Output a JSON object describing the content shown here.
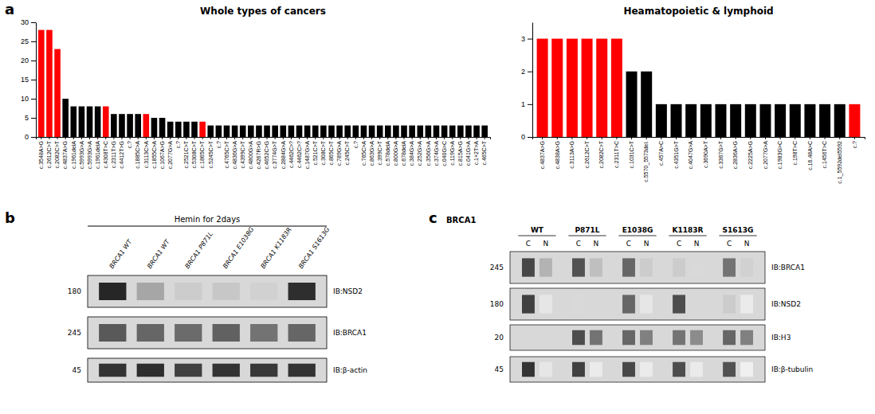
{
  "chart_data": [
    {
      "type": "bar",
      "panel_label": "a",
      "title": "Whole types of cancers",
      "categories": [
        "c.3548A>G",
        "c.2612C>T",
        "c.2082C>T",
        "c.4837A>G",
        "c.1961delA",
        "c.5993G>A",
        "c.5993G>A",
        "c.1961delA",
        "c.4308T>C",
        "c.2311T>G",
        "c.4412T>G",
        "c.?",
        "c.1885C>A",
        "c.3113C>A",
        "c.1855C>A",
        "c.1067A>G",
        "c.2077G>A",
        "c.?",
        "c.2521C>T",
        "c.5308C>T",
        "c.1865C>T",
        "c.5245C>T",
        "c.?",
        "c.4765C>T",
        "c.4836G>A",
        "c.4399C>T",
        "c.4800G>A",
        "c.4267R>G",
        "c.4652C>G",
        "c.3774G>T",
        "c.2884G>A",
        "c.4462C>?",
        "c.4462C>?",
        "c.1487G>A",
        "c.521C>T",
        "c.308C>T",
        "c.865C>T",
        "c.789G>A",
        "c.245C>T",
        "c.?",
        "c.765C>A",
        "c.863G>A",
        "c.399C>T",
        "c.578delA",
        "c.800G>A",
        "c.678delA",
        "c.384G>A",
        "c.252G>A",
        "c.356G>A",
        "c.374G>A",
        "c.040G>C",
        "c.119G>A",
        "c.815A>G",
        "c.041G>A",
        "c.1+2T>A",
        "c.465C>T"
      ],
      "values": [
        28,
        28,
        23,
        10,
        8,
        8,
        8,
        8,
        8,
        6,
        6,
        6,
        6,
        6,
        5,
        5,
        4,
        4,
        4,
        4,
        4,
        3,
        3,
        3,
        3,
        3,
        3,
        3,
        3,
        3,
        3,
        3,
        3,
        3,
        3,
        3,
        3,
        3,
        3,
        3,
        3,
        3,
        3,
        3,
        3,
        3,
        3,
        3,
        3,
        3,
        3,
        3,
        3,
        3,
        3,
        3
      ],
      "colors": [
        "red",
        "red",
        "red",
        "black",
        "black",
        "black",
        "black",
        "black",
        "red",
        "black",
        "black",
        "black",
        "black",
        "red",
        "black",
        "black",
        "black",
        "black",
        "black",
        "black",
        "red",
        "black",
        "black",
        "black",
        "black",
        "black",
        "black",
        "black",
        "black",
        "black",
        "black",
        "black",
        "black",
        "black",
        "black",
        "black",
        "black",
        "black",
        "black",
        "black",
        "black",
        "black",
        "black",
        "black",
        "black",
        "black",
        "black",
        "black",
        "black",
        "black",
        "black",
        "black",
        "black",
        "black",
        "black",
        "black"
      ],
      "ylim": [
        0,
        30
      ],
      "yticks": [
        0,
        5,
        10,
        15,
        20,
        25,
        30
      ]
    },
    {
      "type": "bar",
      "title": "Heamatopoietic & lymphoid",
      "categories": [
        "c.4837A>G",
        "c.4838A>G",
        "c.3113A>G",
        "c.2612C>T",
        "c.2082C>T",
        "c.2311T>C",
        "c.1031C>T",
        "c.5570_5573del.",
        "c.457A>C",
        "c.4351G>T",
        "c.4047G>A",
        "c.3690A>T",
        "c.3367G>T",
        "c.2836A>G",
        "c.2225A>G",
        "c.2077G>A",
        "c.1983G>C",
        "c.198T>C",
        "c.16.48A>C",
        "c.1456T>C",
        "c.1_5592del5592",
        "c.?"
      ],
      "values": [
        3,
        3,
        3,
        3,
        3,
        3,
        2,
        2,
        1,
        1,
        1,
        1,
        1,
        1,
        1,
        1,
        1,
        1,
        1,
        1,
        1,
        1
      ],
      "colors": [
        "red",
        "red",
        "red",
        "red",
        "red",
        "red",
        "black",
        "black",
        "black",
        "black",
        "black",
        "black",
        "black",
        "black",
        "black",
        "black",
        "black",
        "black",
        "black",
        "black",
        "black",
        "red"
      ],
      "ylim": [
        0,
        3.5
      ],
      "yticks": [
        0,
        1,
        2,
        3
      ]
    },
    {
      "type": "blot",
      "panel_label": "b",
      "annotations": [
        "Hemin for 2days"
      ],
      "color": "#d8d8d8",
      "categories": [
        "BRCA1 WT",
        "BRCA1 WT",
        "BRCA1 P871L",
        "BRCA1 E1038G",
        "BRCA1 K1183R",
        "BRCA1 S1613G"
      ],
      "series": [
        {
          "name": "IB:NSD2",
          "ladder_label": "180",
          "values": [
            0.85,
            0.35,
            0.2,
            0.22,
            0.18,
            0.82
          ]
        },
        {
          "name": "IB:BRCA1",
          "ladder_label": "245",
          "values": [
            0.65,
            0.6,
            0.58,
            0.62,
            0.55,
            0.6
          ]
        },
        {
          "name": "IB:β-actin",
          "ladder_label": "45",
          "values": [
            0.8,
            0.82,
            0.75,
            0.8,
            0.78,
            0.8
          ]
        }
      ]
    },
    {
      "type": "blot",
      "panel_label": "c",
      "title": "BRCA1",
      "color": "#d8d8d8",
      "categories": [
        "WT",
        "P871L",
        "E1038G",
        "K1183R",
        "S1613G"
      ],
      "fractions": [
        "C",
        "N"
      ],
      "series": [
        {
          "name": "IB:BRCA1",
          "ladder_label": "245",
          "values": [
            [
              0.72,
              0.3
            ],
            [
              0.68,
              0.25
            ],
            [
              0.6,
              0.2
            ],
            [
              0.2,
              0.15
            ],
            [
              0.55,
              0.18
            ]
          ]
        },
        {
          "name": "IB:NSD2",
          "ladder_label": "180",
          "values": [
            [
              0.75,
              0.1
            ],
            [
              0.15,
              null
            ],
            [
              0.6,
              0.1
            ],
            [
              0.7,
              null
            ],
            [
              0.2,
              0.08
            ]
          ]
        },
        {
          "name": "IB:H3",
          "ladder_label": "20",
          "values": [
            [
              null,
              null
            ],
            [
              0.7,
              0.55
            ],
            [
              0.6,
              0.5
            ],
            [
              0.55,
              0.45
            ],
            [
              0.6,
              0.5
            ]
          ]
        },
        {
          "name": "IB:β-tubulin",
          "ladder_label": "45",
          "values": [
            [
              0.8,
              0.1
            ],
            [
              0.75,
              0.08
            ],
            [
              0.72,
              0.08
            ],
            [
              0.7,
              0.08
            ],
            [
              0.68,
              0.06
            ]
          ]
        }
      ]
    }
  ]
}
